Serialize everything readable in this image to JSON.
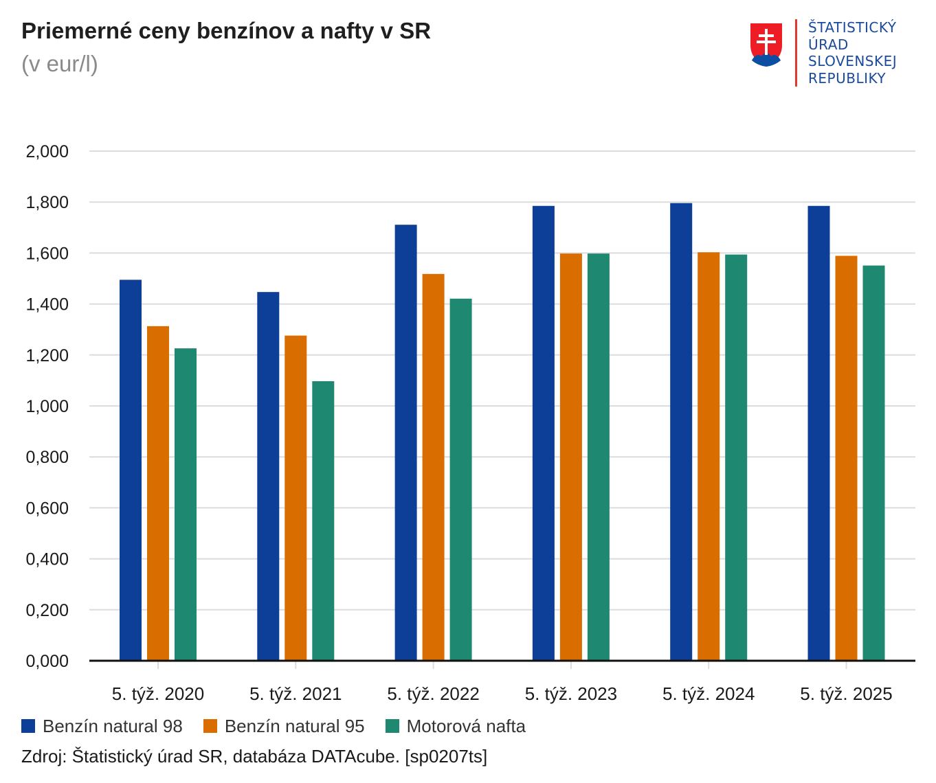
{
  "header": {
    "title": "Priemerné ceny benzínov a nafty v SR",
    "subtitle": "(v eur/l)"
  },
  "logo": {
    "lines": [
      "ŠTATISTICKÝ",
      "ÚRAD",
      "SLOVENSKEJ",
      "REPUBLIKY"
    ],
    "text_color": "#1a4a9c",
    "divider_color": "#e03a2e"
  },
  "chart_data": {
    "type": "bar",
    "title": "Priemerné ceny benzínov a nafty v SR",
    "subtitle": "(v eur/l)",
    "xlabel": "",
    "ylabel": "",
    "ylim": [
      0,
      2
    ],
    "y_ticks": [
      0,
      0.2,
      0.4,
      0.6,
      0.8,
      1.0,
      1.2,
      1.4,
      1.6,
      1.8,
      2.0
    ],
    "y_tick_labels": [
      "0,000",
      "0,200",
      "0,400",
      "0,600",
      "0,800",
      "1,000",
      "1,200",
      "1,400",
      "1,600",
      "1,800",
      "2,000"
    ],
    "grid": true,
    "legend_position": "bottom-left",
    "categories": [
      "5. týž. 2020",
      "5. týž. 2021",
      "5. týž. 2022",
      "5. týž. 2023",
      "5. týž. 2024",
      "5. týž. 2025"
    ],
    "series": [
      {
        "name": "Benzín natural 98",
        "color": "#0d3f99",
        "values": [
          1.495,
          1.447,
          1.711,
          1.785,
          1.796,
          1.785
        ]
      },
      {
        "name": "Benzín natural 95",
        "color": "#d96d00",
        "values": [
          1.313,
          1.276,
          1.518,
          1.598,
          1.603,
          1.589
        ]
      },
      {
        "name": "Motorová nafta",
        "color": "#1f8870",
        "values": [
          1.226,
          1.097,
          1.421,
          1.598,
          1.594,
          1.551
        ]
      }
    ]
  },
  "footer": {
    "source": "Zdroj: Štatistický úrad SR, databáza DATAcube. [sp0207ts]"
  }
}
